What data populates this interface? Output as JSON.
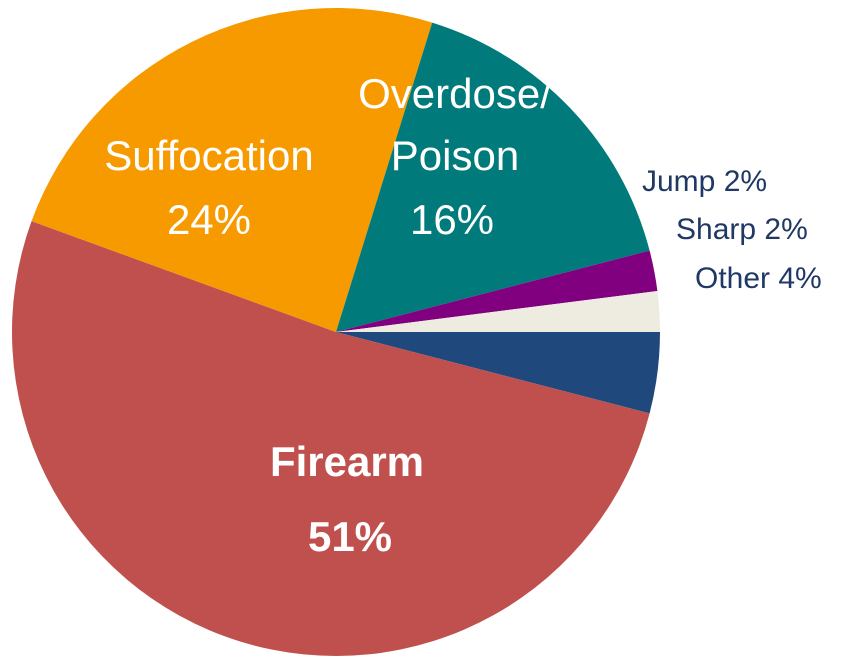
{
  "chart_data": {
    "type": "pie",
    "title": "",
    "slices": [
      {
        "name": "Other",
        "value": 4,
        "value_label": "4%",
        "color": "#1f497d",
        "label_placement": "outside"
      },
      {
        "name": "Firearm",
        "value": 51,
        "value_label": "51%",
        "color": "#c0504d",
        "label_placement": "inside",
        "bold": true
      },
      {
        "name": "Suffocation",
        "value": 24,
        "value_label": "24%",
        "color": "#f79a00",
        "label_placement": "inside"
      },
      {
        "name": "Overdose/\nPoison",
        "value": 16,
        "value_label": "16%",
        "color": "#007a7a",
        "label_placement": "inside"
      },
      {
        "name": "Jump",
        "value": 2,
        "value_label": "2%",
        "color": "#800080",
        "label_placement": "outside"
      },
      {
        "name": "Sharp",
        "value": 2,
        "value_label": "2%",
        "color": "#eeece1",
        "label_placement": "outside"
      }
    ],
    "labels": {
      "firearm_line1": "Firearm",
      "firearm_line2": "51%",
      "suffocation_line1": "Suffocation",
      "suffocation_line2": "24%",
      "overdose_line1": "Overdose/",
      "overdose_line2": "Poison",
      "overdose_line3": "16%",
      "jump": "Jump 2%",
      "sharp": "Sharp 2%",
      "other": "Other 4%"
    }
  }
}
